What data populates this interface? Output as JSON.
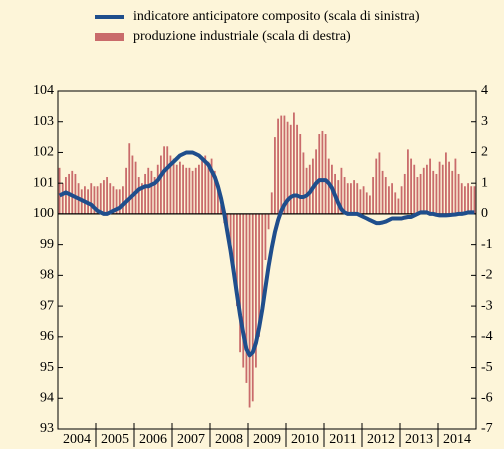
{
  "chart_data": {
    "type": "line-bar",
    "categories": [
      "2004",
      "2005",
      "2006",
      "2007",
      "2008",
      "2009",
      "2010",
      "2011",
      "2012",
      "2013",
      "2014"
    ],
    "series": [
      {
        "name": "indicatore anticipatore composito (scala di sinistra)",
        "type": "line",
        "color": "#1f4e8c",
        "axis": "y",
        "values": [
          [
            100.6,
            100.65,
            100.7,
            100.65,
            100.6,
            100.55,
            100.5,
            100.45,
            100.4,
            100.35,
            100.3,
            100.2
          ],
          [
            100.1,
            100.05,
            100.0,
            100.0,
            100.05,
            100.1,
            100.15,
            100.2,
            100.3,
            100.4,
            100.5,
            100.6
          ],
          [
            100.7,
            100.8,
            100.85,
            100.9,
            100.9,
            100.95,
            101.0,
            101.1,
            101.25,
            101.4,
            101.5,
            101.6
          ],
          [
            101.7,
            101.8,
            101.9,
            101.95,
            102.0,
            102.0,
            102.0,
            101.95,
            101.9,
            101.8,
            101.7,
            101.6
          ],
          [
            101.4,
            101.2,
            100.9,
            100.5,
            100.0,
            99.4,
            98.8,
            98.1,
            97.4,
            96.7,
            96.1,
            95.6
          ],
          [
            95.4,
            95.5,
            95.8,
            96.3,
            96.9,
            97.6,
            98.3,
            98.9,
            99.4,
            99.8,
            100.1,
            100.3
          ],
          [
            100.45,
            100.55,
            100.6,
            100.6,
            100.55,
            100.55,
            100.6,
            100.7,
            100.85,
            101.0,
            101.1,
            101.1
          ],
          [
            101.1,
            101.0,
            100.85,
            100.6,
            100.35,
            100.15,
            100.05,
            100.0,
            100.0,
            100.0,
            100.0,
            99.95
          ],
          [
            99.9,
            99.85,
            99.8,
            99.75,
            99.7,
            99.7,
            99.72,
            99.75,
            99.8,
            99.85,
            99.85,
            99.85
          ],
          [
            99.85,
            99.88,
            99.9,
            99.9,
            99.95,
            100.0,
            100.05,
            100.05,
            100.05,
            100.0,
            100.0,
            99.97
          ],
          [
            99.95,
            99.95,
            99.95,
            99.96,
            99.97,
            99.98,
            100.0,
            100.0,
            100.02,
            100.05,
            100.05,
            100.05
          ]
        ]
      },
      {
        "name": "produzione industriale (scala di destra)",
        "type": "bar",
        "color": "#c96b6b",
        "axis": "y2",
        "values": [
          [
            1.5,
            1.0,
            1.2,
            1.3,
            1.4,
            1.3,
            1.0,
            0.8,
            0.9,
            0.8,
            1.0,
            0.9
          ],
          [
            0.9,
            1.0,
            1.1,
            1.2,
            1.0,
            0.9,
            0.8,
            0.8,
            0.9,
            1.5,
            2.3,
            1.9
          ],
          [
            1.7,
            1.2,
            1.0,
            1.3,
            1.5,
            1.4,
            1.2,
            1.6,
            1.9,
            2.2,
            2.2,
            1.9
          ],
          [
            1.8,
            1.6,
            1.7,
            1.6,
            1.5,
            1.5,
            1.4,
            1.5,
            1.6,
            1.8,
            1.9,
            1.7
          ],
          [
            1.8,
            1.4,
            0.9,
            0.3,
            -0.3,
            -0.8,
            -1.3,
            -2.0,
            -3.0,
            -4.5,
            -5.0,
            -5.5
          ],
          [
            -6.3,
            -6.1,
            -5.0,
            -4.0,
            -3.0,
            -1.5,
            -0.5,
            0.7,
            2.5,
            3.1,
            3.2,
            3.2
          ],
          [
            3.0,
            2.9,
            3.3,
            2.9,
            2.6,
            2.0,
            1.5,
            1.6,
            1.8,
            2.1,
            2.6,
            2.7
          ],
          [
            2.6,
            1.8,
            1.6,
            1.3,
            1.1,
            1.5,
            1.2,
            1.0,
            1.0,
            1.1,
            1.0,
            0.8
          ],
          [
            0.9,
            0.7,
            0.6,
            1.2,
            1.8,
            2.0,
            1.4,
            1.2,
            0.9,
            1.0,
            0.7,
            0.5
          ],
          [
            0.9,
            1.3,
            2.1,
            1.8,
            1.6,
            1.2,
            1.3,
            1.5,
            1.6,
            1.8,
            1.4,
            1.3
          ],
          [
            1.7,
            1.6,
            2.0,
            1.7,
            1.4,
            1.8,
            1.3,
            1.0,
            0.9,
            1.0,
            0.9,
            0.9
          ]
        ]
      }
    ],
    "ylim": [
      93,
      104
    ],
    "yticks": [
      93,
      94,
      95,
      96,
      97,
      98,
      99,
      100,
      101,
      102,
      103,
      104
    ],
    "y2lim": [
      -7,
      4
    ],
    "y2ticks": [
      -7,
      -6,
      -5,
      -4,
      -3,
      -2,
      -1,
      0,
      1,
      2,
      3,
      4
    ]
  }
}
